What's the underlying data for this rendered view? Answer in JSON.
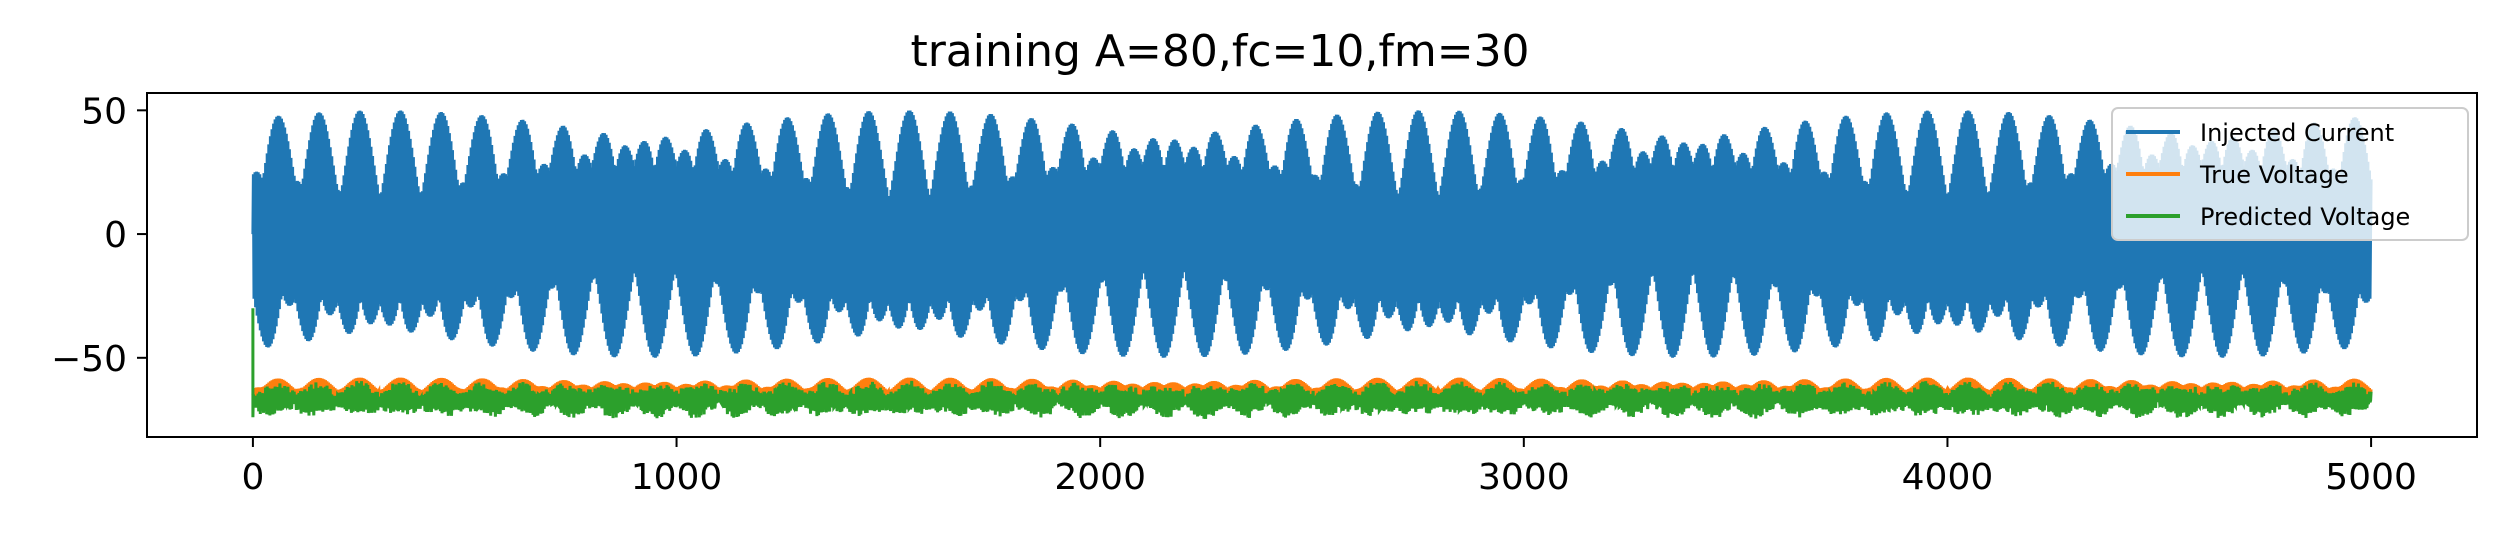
{
  "chart_data": {
    "type": "line",
    "title": "training A=80,fc=10,fm=30",
    "xlabel": "",
    "ylabel": "",
    "xlim": [
      -250,
      5250
    ],
    "ylim": [
      -82,
      57
    ],
    "xticks": [
      0,
      1000,
      2000,
      3000,
      4000,
      5000
    ],
    "xtick_labels": [
      "0",
      "1000",
      "2000",
      "3000",
      "4000",
      "5000"
    ],
    "yticks": [
      50,
      0,
      -50
    ],
    "ytick_labels": [
      "50",
      "0",
      "−50"
    ],
    "grid": false,
    "legend_position": "upper-right",
    "x_range": [
      0,
      5000
    ],
    "series": [
      {
        "name": "Injected Current",
        "color": "#1f77b4",
        "envelope_max": 50,
        "envelope_min": -50,
        "center": 0,
        "burst_period": 100
      },
      {
        "name": "True Voltage",
        "color": "#ff7f0e",
        "upper": -58,
        "lower": -72,
        "center": -65,
        "burst_period": 100
      },
      {
        "name": "Predicted Voltage",
        "color": "#2ca02c",
        "upper": -60,
        "lower": -74,
        "center": -67,
        "initial_value": -30,
        "burst_period": 100
      }
    ]
  }
}
